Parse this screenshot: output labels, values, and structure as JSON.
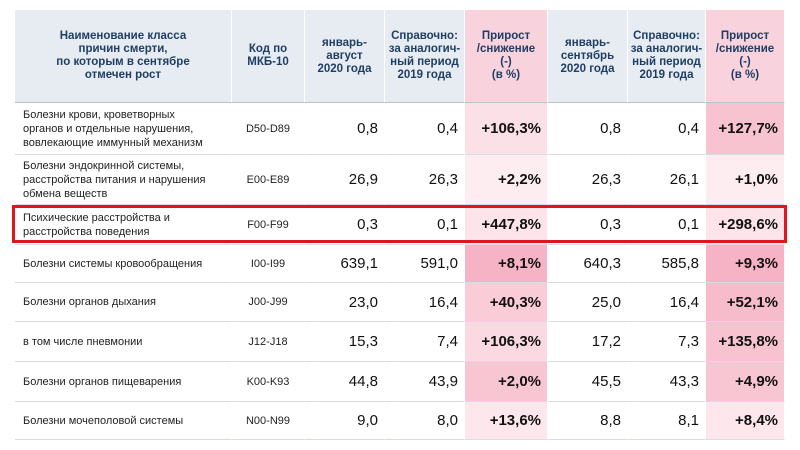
{
  "table": {
    "header": [
      "Наименование класса\nпричин смерти,\nпо которым в сентябре\nотмечен рост",
      "Код по\nМКБ-10",
      "январь-\nавгуст\n2020 года",
      "Справочно:\nза аналогич-\nный период\n2019 года",
      "Прирост\n/снижение\n(-)\n(в %)",
      "январь-\nсентябрь\n2020 года",
      "Справочно:\nза аналогич-\nный период\n2019 года",
      "Прирост\n/снижение\n(-)\n(в %)"
    ],
    "rows": [
      [
        "Болезни крови, кроветворных\nорганов и отдельные нарушения,\nвовлекающие иммунный механизм",
        "D50-D89",
        "0,8",
        "0,4",
        "+106,3%",
        "0,8",
        "0,4",
        "+127,7%"
      ],
      [
        "Болезни эндокринной системы,\nрасстройства питания и нарушения\nобмена веществ",
        "E00-E89",
        "26,9",
        "26,3",
        "+2,2%",
        "26,3",
        "26,1",
        "+1,0%"
      ],
      [
        "Психические расстройства и\nрасстройства поведения",
        "F00-F99",
        "0,3",
        "0,1",
        "+447,8%",
        "0,3",
        "0,1",
        "+298,6%"
      ],
      [
        "Болезни системы кровообращения",
        "I00-I99",
        "639,1",
        "591,0",
        "+8,1%",
        "640,3",
        "585,8",
        "+9,3%"
      ],
      [
        "Болезни органов дыхания",
        "J00-J99",
        "23,0",
        "16,4",
        "+40,3%",
        "25,0",
        "16,4",
        "+52,1%"
      ],
      [
        "     в том числе пневмонии",
        "J12-J18",
        "15,3",
        "7,4",
        "+106,3%",
        "17,2",
        "7,3",
        "+135,8%"
      ],
      [
        "Болезни органов пищеварения",
        "K00-K93",
        "44,8",
        "43,9",
        "+2,0%",
        "45,5",
        "43,3",
        "+4,9%"
      ],
      [
        "Болезни мочеполовой системы",
        "N00-N99",
        "9,0",
        "8,0",
        "+13,6%",
        "8,8",
        "8,1",
        "+8,4%"
      ]
    ]
  }
}
